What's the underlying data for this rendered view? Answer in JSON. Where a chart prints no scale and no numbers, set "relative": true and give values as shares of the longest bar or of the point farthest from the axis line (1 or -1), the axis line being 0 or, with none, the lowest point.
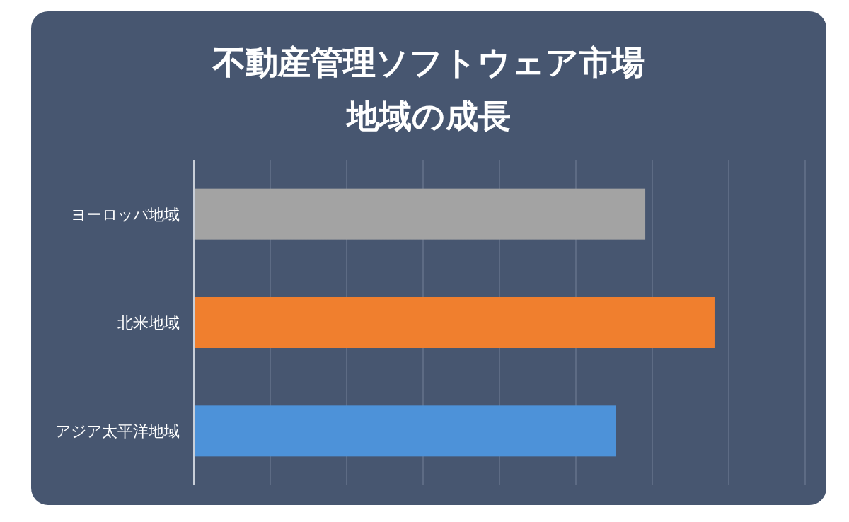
{
  "chart_data": {
    "type": "bar",
    "orientation": "horizontal",
    "relative": true,
    "title": "不動産管理ソフトウェア市場",
    "subtitle": "地域の成長",
    "categories": [
      "ヨーロッパ地域",
      "北米地域",
      "アジア太平洋地域"
    ],
    "values": [
      0.867,
      1,
      0.81
    ],
    "colors": [
      "#a3a3a3",
      "#f07f2e",
      "#4d92d9"
    ],
    "grid": "x"
  }
}
